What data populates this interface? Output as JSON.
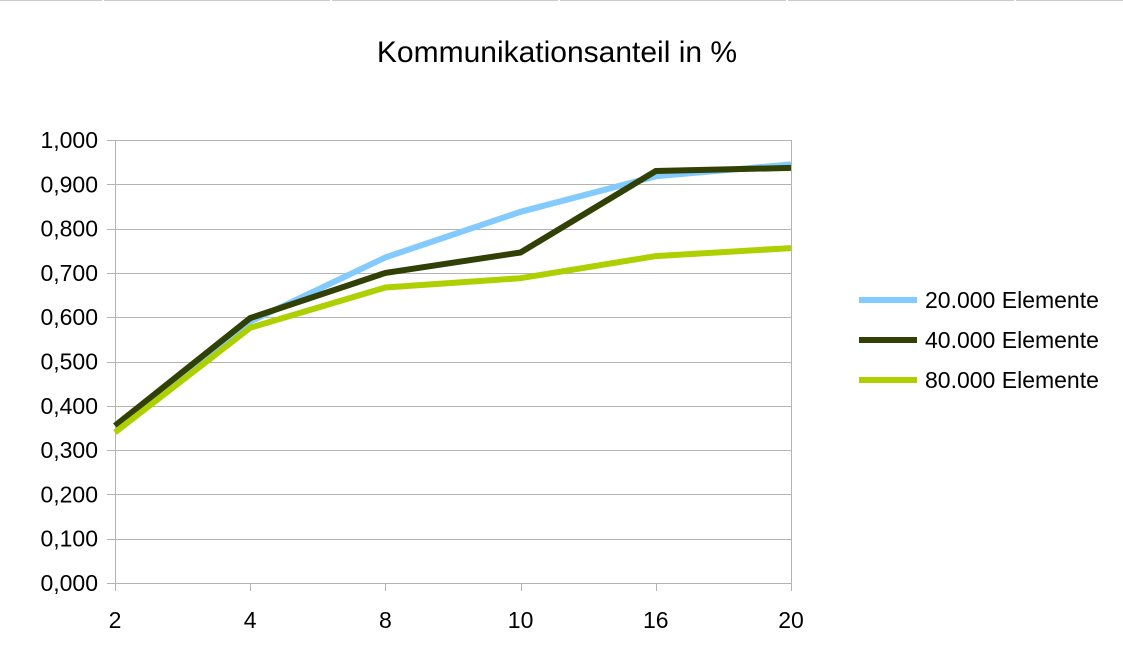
{
  "chart_data": {
    "type": "line",
    "title": "Kommunikationsanteil in %",
    "categories": [
      "2",
      "4",
      "8",
      "10",
      "16",
      "20"
    ],
    "ylim": [
      0,
      1
    ],
    "y_ticks": [
      "0,000",
      "0,100",
      "0,200",
      "0,300",
      "0,400",
      "0,500",
      "0,600",
      "0,700",
      "0,800",
      "0,900",
      "1,000"
    ],
    "y_tick_values": [
      0,
      0.1,
      0.2,
      0.3,
      0.4,
      0.5,
      0.6,
      0.7,
      0.8,
      0.9,
      1.0
    ],
    "grid": true,
    "legend_position": "right",
    "series": [
      {
        "name": "20.000 Elemente",
        "color": "#83caff",
        "values": [
          0.355,
          0.59,
          0.735,
          0.838,
          0.918,
          0.945
        ]
      },
      {
        "name": "40.000 Elemente",
        "color": "#314004",
        "values": [
          0.355,
          0.598,
          0.7,
          0.746,
          0.93,
          0.937
        ]
      },
      {
        "name": "80.000 Elemente",
        "color": "#aecf00",
        "values": [
          0.34,
          0.576,
          0.667,
          0.688,
          0.738,
          0.756
        ]
      }
    ]
  }
}
